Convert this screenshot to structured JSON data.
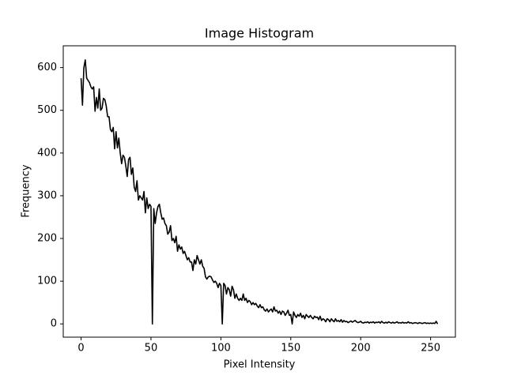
{
  "chart_data": {
    "type": "line",
    "title": "Image Histogram",
    "x_label": "Pixel Intensity",
    "y_label": "Frequency",
    "color": "#000000",
    "x": [
      0,
      1,
      2,
      3,
      4,
      5,
      6,
      7,
      8,
      9,
      10,
      11,
      12,
      13,
      14,
      15,
      16,
      17,
      18,
      19,
      20,
      21,
      22,
      23,
      24,
      25,
      26,
      27,
      28,
      29,
      30,
      31,
      32,
      33,
      34,
      35,
      36,
      37,
      38,
      39,
      40,
      41,
      42,
      43,
      44,
      45,
      46,
      47,
      48,
      49,
      50,
      51,
      52,
      53,
      54,
      55,
      56,
      57,
      58,
      59,
      60,
      61,
      62,
      63,
      64,
      65,
      66,
      67,
      68,
      69,
      70,
      71,
      72,
      73,
      74,
      75,
      76,
      77,
      78,
      79,
      80,
      81,
      82,
      83,
      84,
      85,
      86,
      87,
      88,
      89,
      90,
      91,
      92,
      93,
      94,
      95,
      96,
      97,
      98,
      99,
      100,
      101,
      102,
      103,
      104,
      105,
      106,
      107,
      108,
      109,
      110,
      111,
      112,
      113,
      114,
      115,
      116,
      117,
      118,
      119,
      120,
      121,
      122,
      123,
      124,
      125,
      126,
      127,
      128,
      129,
      130,
      131,
      132,
      133,
      134,
      135,
      136,
      137,
      138,
      139,
      140,
      141,
      142,
      143,
      144,
      145,
      146,
      147,
      148,
      149,
      150,
      151,
      152,
      153,
      154,
      155,
      156,
      157,
      158,
      159,
      160,
      161,
      162,
      163,
      164,
      165,
      166,
      167,
      168,
      169,
      170,
      171,
      172,
      173,
      174,
      175,
      176,
      177,
      178,
      179,
      180,
      181,
      182,
      183,
      184,
      185,
      186,
      187,
      188,
      189,
      190,
      191,
      192,
      193,
      194,
      195,
      196,
      197,
      198,
      199,
      200,
      201,
      202,
      203,
      204,
      205,
      206,
      207,
      208,
      209,
      210,
      211,
      212,
      213,
      214,
      215,
      216,
      217,
      218,
      219,
      220,
      221,
      222,
      223,
      224,
      225,
      226,
      227,
      228,
      229,
      230,
      231,
      232,
      233,
      234,
      235,
      236,
      237,
      238,
      239,
      240,
      241,
      242,
      243,
      244,
      245,
      246,
      247,
      248,
      249,
      250,
      251,
      252,
      253,
      254,
      255
    ],
    "values": [
      575,
      512,
      600,
      618,
      575,
      570,
      565,
      555,
      550,
      555,
      498,
      530,
      505,
      550,
      500,
      505,
      528,
      525,
      510,
      485,
      485,
      455,
      450,
      460,
      410,
      450,
      412,
      435,
      400,
      375,
      395,
      390,
      370,
      345,
      385,
      390,
      350,
      365,
      320,
      310,
      335,
      290,
      300,
      295,
      290,
      310,
      260,
      295,
      270,
      280,
      275,
      0,
      270,
      235,
      260,
      275,
      280,
      260,
      245,
      248,
      235,
      230,
      210,
      215,
      230,
      195,
      200,
      190,
      205,
      170,
      185,
      175,
      180,
      165,
      170,
      160,
      150,
      155,
      145,
      145,
      125,
      150,
      140,
      160,
      150,
      140,
      150,
      135,
      130,
      110,
      105,
      110,
      112,
      110,
      103,
      97,
      100,
      95,
      85,
      95,
      90,
      0,
      95,
      90,
      70,
      85,
      80,
      65,
      88,
      80,
      60,
      70,
      60,
      55,
      60,
      55,
      70,
      55,
      60,
      50,
      55,
      52,
      45,
      50,
      45,
      48,
      42,
      38,
      45,
      38,
      40,
      33,
      30,
      35,
      28,
      32,
      35,
      28,
      40,
      30,
      32,
      25,
      30,
      22,
      30,
      28,
      20,
      25,
      32,
      20,
      22,
      0,
      28,
      20,
      15,
      22,
      18,
      25,
      15,
      20,
      12,
      22,
      18,
      15,
      20,
      15,
      12,
      18,
      15,
      16,
      10,
      18,
      8,
      12,
      10,
      5,
      12,
      10,
      5,
      12,
      8,
      5,
      12,
      6,
      8,
      5,
      10,
      4,
      8,
      5,
      6,
      3,
      5,
      7,
      4,
      6,
      8,
      5,
      3,
      4,
      6,
      3,
      2,
      4,
      3,
      5,
      2,
      4,
      3,
      5,
      2,
      4,
      3,
      5,
      2,
      6,
      3,
      2,
      4,
      2,
      5,
      3,
      2,
      4,
      2,
      3,
      5,
      2,
      3,
      2,
      4,
      2,
      3,
      2,
      5,
      2,
      3,
      1,
      2,
      3,
      2,
      1,
      3,
      2,
      1,
      2,
      3,
      1,
      2,
      1,
      2,
      1,
      2,
      1,
      6,
      0
    ],
    "xlim": [
      -12.75,
      267.75
    ],
    "xticks": [
      0,
      50,
      100,
      150,
      200,
      250
    ],
    "ylim": [
      -31,
      651
    ],
    "yticks": [
      0,
      100,
      200,
      300,
      400,
      500,
      600
    ]
  }
}
